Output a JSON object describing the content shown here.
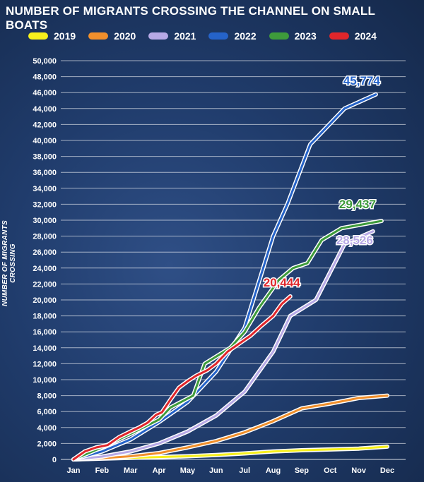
{
  "chart_data": {
    "type": "line",
    "title": "NUMBER OF MIGRANTS CROSSING THE CHANNEL ON SMALL BOATS",
    "xlabel": "",
    "ylabel": "NUMBER OF MIGRANTS CROSSING",
    "categories": [
      "Jan",
      "Feb",
      "Mar",
      "Apr",
      "May",
      "Jun",
      "Jul",
      "Aug",
      "Sep",
      "Oct",
      "Nov",
      "Dec"
    ],
    "ylim": [
      0,
      50000
    ],
    "yticks": [
      0,
      2000,
      4000,
      6000,
      8000,
      10000,
      12000,
      14000,
      16000,
      18000,
      20000,
      22000,
      24000,
      26000,
      28000,
      30000,
      32000,
      34000,
      36000,
      38000,
      40000,
      42000,
      44000,
      46000,
      48000,
      50000
    ],
    "ytick_labels": [
      "0",
      "2,000",
      "4,000",
      "6,000",
      "8,000",
      "10,000",
      "12,000",
      "14,000",
      "16,000",
      "18,000",
      "20,000",
      "22,000",
      "24,000",
      "26,000",
      "28,000",
      "30,000",
      "32,000",
      "34,000",
      "36,000",
      "38,000",
      "40,000",
      "42,000",
      "44,000",
      "46,000",
      "48,000",
      "50,000"
    ],
    "grid": true,
    "legend_position": "top",
    "series": [
      {
        "name": "2019",
        "color": "#f7f01c",
        "points": [
          [
            0,
            0
          ],
          [
            1,
            100
          ],
          [
            2,
            200
          ],
          [
            3,
            300
          ],
          [
            4,
            400
          ],
          [
            5,
            550
          ],
          [
            6,
            750
          ],
          [
            7,
            1000
          ],
          [
            8,
            1150
          ],
          [
            9,
            1250
          ],
          [
            10,
            1350
          ],
          [
            11,
            1600
          ]
        ]
      },
      {
        "name": "2020",
        "color": "#f08f2c",
        "points": [
          [
            0,
            0
          ],
          [
            1,
            150
          ],
          [
            2,
            400
          ],
          [
            3,
            800
          ],
          [
            4,
            1500
          ],
          [
            5,
            2300
          ],
          [
            6,
            3400
          ],
          [
            7,
            4800
          ],
          [
            8,
            6400
          ],
          [
            9,
            7000
          ],
          [
            10,
            7700
          ],
          [
            11,
            8000
          ]
        ]
      },
      {
        "name": "2021",
        "color": "#b7a9e6",
        "points": [
          [
            0,
            0
          ],
          [
            1,
            350
          ],
          [
            2,
            1000
          ],
          [
            3,
            2000
          ],
          [
            4,
            3500
          ],
          [
            5,
            5500
          ],
          [
            6,
            8500
          ],
          [
            7,
            13500
          ],
          [
            7.6,
            18000
          ],
          [
            8.5,
            20000
          ],
          [
            9.5,
            27000
          ],
          [
            10.5,
            28600
          ]
        ]
      },
      {
        "name": "2022",
        "color": "#2563c9",
        "points": [
          [
            0,
            0
          ],
          [
            1,
            1000
          ],
          [
            2,
            2500
          ],
          [
            3,
            4700
          ],
          [
            4,
            7200
          ],
          [
            5,
            11000
          ],
          [
            6,
            16500
          ],
          [
            7,
            28000
          ],
          [
            7.5,
            32000
          ],
          [
            8.3,
            39500
          ],
          [
            9.5,
            44000
          ],
          [
            10.6,
            45774
          ]
        ]
      },
      {
        "name": "2023",
        "color": "#3e9b3b",
        "points": [
          [
            0,
            0
          ],
          [
            1,
            1500
          ],
          [
            2,
            3200
          ],
          [
            3,
            5000
          ],
          [
            3.4,
            6500
          ],
          [
            4.2,
            8000
          ],
          [
            4.6,
            12000
          ],
          [
            5.5,
            14000
          ],
          [
            6,
            16000
          ],
          [
            6.5,
            19000
          ],
          [
            7.2,
            22500
          ],
          [
            7.7,
            24000
          ],
          [
            8.2,
            24600
          ],
          [
            8.7,
            27500
          ],
          [
            9.4,
            29000
          ],
          [
            10.8,
            29900
          ]
        ]
      },
      {
        "name": "2024",
        "color": "#e0262b",
        "points": [
          [
            0,
            0
          ],
          [
            0.4,
            1000
          ],
          [
            0.8,
            1500
          ],
          [
            1.2,
            1800
          ],
          [
            1.6,
            2800
          ],
          [
            2.0,
            3500
          ],
          [
            2.3,
            4000
          ],
          [
            2.6,
            4600
          ],
          [
            2.9,
            5600
          ],
          [
            3.1,
            5900
          ],
          [
            3.4,
            7500
          ],
          [
            3.7,
            9000
          ],
          [
            4.0,
            9800
          ],
          [
            4.3,
            10500
          ],
          [
            4.7,
            11200
          ],
          [
            5.0,
            12000
          ],
          [
            5.4,
            13500
          ],
          [
            5.8,
            14500
          ],
          [
            6.2,
            15500
          ],
          [
            6.6,
            16800
          ],
          [
            7.0,
            18000
          ],
          [
            7.3,
            19500
          ],
          [
            7.6,
            20444
          ]
        ]
      }
    ],
    "annotations": [
      {
        "text": "45,774",
        "series": "2022",
        "color": "#2563c9"
      },
      {
        "text": "29,437",
        "series": "2023",
        "color": "#3e9b3b"
      },
      {
        "text": "28,526",
        "series": "2021",
        "color": "#b7a9e6"
      },
      {
        "text": "20,444",
        "series": "2024",
        "color": "#e0262b"
      }
    ]
  }
}
